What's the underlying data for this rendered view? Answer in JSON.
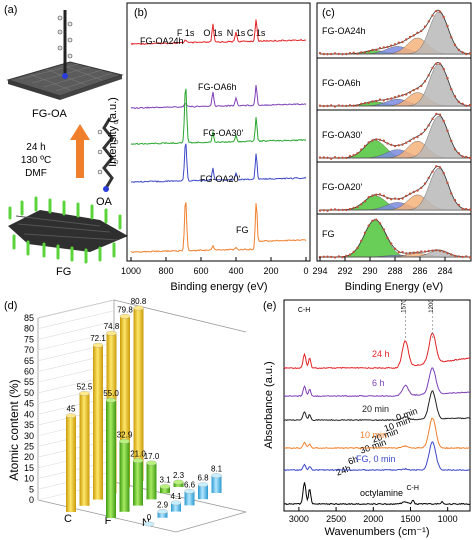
{
  "panels": {
    "a": {
      "letter": "(a)",
      "top_label": "FG-OA",
      "conditions": [
        "24 h",
        "130 ºC",
        "DMF"
      ],
      "molecule_label": "OA",
      "bottom_label": "FG"
    }
  },
  "colors": {
    "fg": "#f07f2c",
    "oa20": "#3b49c6",
    "oa30": "#27a62b",
    "oa6h": "#7e3fb7",
    "oa24h": "#e32427",
    "fit_green": "#4ec63a",
    "fit_orange": "#f4b27a",
    "fit_blue": "#7b89e0",
    "fit_grey": "#b9b9b9",
    "bar_C": "#f2c81e",
    "bar_F": "#6fcf2e",
    "bar_N": "#6fc6f0",
    "arrow": "#f07f2c"
  },
  "chart_data": [
    {
      "panel": "(b)",
      "type": "line",
      "xlabel": "Binding energy (eV)",
      "ylabel": "Intensity (a.u.)",
      "xlim": [
        1000,
        0
      ],
      "x_ticks": [
        1000,
        800,
        600,
        400,
        200,
        0
      ],
      "peak_labels": [
        "F 1s",
        "O 1s",
        "N 1s",
        "C 1s"
      ],
      "peak_positions_eV": [
        688,
        532,
        400,
        285
      ],
      "series": [
        {
          "name": "FG-OA24h"
        },
        {
          "name": "FG-OA6h"
        },
        {
          "name": "FG-OA30'"
        },
        {
          "name": "FG-OA20'"
        },
        {
          "name": "FG"
        }
      ]
    },
    {
      "panel": "(c)",
      "type": "line",
      "xlabel": "Binding Energy (eV)",
      "xlim": [
        294,
        282
      ],
      "x_ticks": [
        294,
        292,
        290,
        288,
        286,
        284
      ],
      "series": [
        {
          "name": "FG-OA24h"
        },
        {
          "name": "FG-OA6h"
        },
        {
          "name": "FG-OA30'"
        },
        {
          "name": "FG-OA20'"
        },
        {
          "name": "FG"
        }
      ]
    },
    {
      "panel": "(d)",
      "type": "bar",
      "ylabel": "Atomic content (%)",
      "ylim": [
        0,
        85
      ],
      "y_ticks": [
        0,
        5,
        10,
        15,
        20,
        25,
        30,
        35,
        40,
        45,
        50,
        55,
        60,
        65,
        70,
        75,
        80,
        85
      ],
      "categories": [
        "C",
        "F",
        "N"
      ],
      "depth_labels": [
        "24h",
        "6h",
        "30 min",
        "20 min",
        "10 min",
        "0 min"
      ],
      "values": {
        "C": [
          45,
          52.5,
          72.1,
          74.8,
          79.8,
          80.8
        ],
        "F": [
          55.0,
          32.9,
          21.0,
          17.0,
          3.1,
          2.3
        ],
        "N": [
          0.0,
          2.9,
          4.1,
          6.6,
          6.8,
          8.1
        ]
      }
    },
    {
      "panel": "(e)",
      "type": "line",
      "xlabel": "Wavenumbers (cm⁻¹)",
      "ylabel": "Absorbance (a.u.)",
      "xlim": [
        3200,
        700
      ],
      "x_ticks": [
        3000,
        2500,
        2000,
        1500,
        1000
      ],
      "top_annotations": [
        "C-H",
        "1570",
        "1200"
      ],
      "band_label": "C-H",
      "series": [
        {
          "name": "24 h"
        },
        {
          "name": "6 h"
        },
        {
          "name": "20 min"
        },
        {
          "name": "10 min"
        },
        {
          "name": "FG, 0 min"
        },
        {
          "name": "octylamine"
        }
      ]
    }
  ]
}
